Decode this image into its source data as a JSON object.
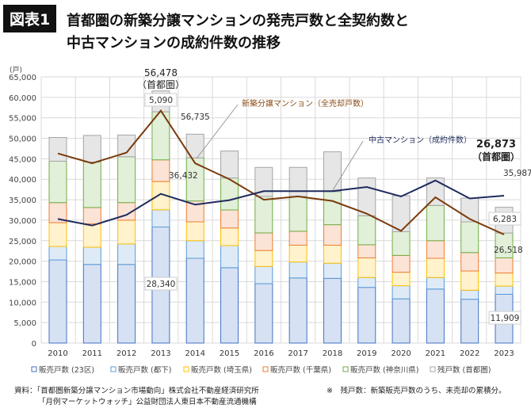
{
  "header": {
    "badge": "図表1",
    "title_line1": "首都圏の新築分譲マンションの発売戸数と全契約数と",
    "title_line2": "中古マンションの成約件数の推移"
  },
  "chart_data": {
    "type": "bar",
    "stacked": true,
    "ylabel": "(戸)",
    "ylim": [
      0,
      65000
    ],
    "yticks": [
      0,
      5000,
      10000,
      15000,
      20000,
      25000,
      30000,
      35000,
      40000,
      45000,
      50000,
      55000,
      60000,
      65000
    ],
    "ytick_labels": [
      "0",
      "5,000",
      "10,000",
      "15,000",
      "20,000",
      "25,000",
      "30,000",
      "35,000",
      "40,000",
      "45,000",
      "50,000",
      "55,000",
      "60,000",
      "65,000"
    ],
    "grid": true,
    "legend_position": "bottom",
    "categories": [
      "2010",
      "2011",
      "2012",
      "2013",
      "2014",
      "2015",
      "2016",
      "2017",
      "2018",
      "2019",
      "2020",
      "2021",
      "2022",
      "2023"
    ],
    "series": [
      {
        "name": "販売戸数 (23区)",
        "fill": "#d6e2f3",
        "stroke": "#4472c4",
        "values": [
          20300,
          19200,
          19200,
          28340,
          20700,
          18400,
          14500,
          15900,
          15800,
          13600,
          10800,
          13200,
          10700,
          11909
        ]
      },
      {
        "name": "販売戸数 (都下)",
        "fill": "#deebf7",
        "stroke": "#5b9bd5",
        "values": [
          3300,
          4200,
          5000,
          4200,
          4300,
          5400,
          4200,
          3900,
          3700,
          2400,
          3200,
          2800,
          2200,
          2000
        ]
      },
      {
        "name": "販売戸数 (埼玉県)",
        "fill": "#fff2cc",
        "stroke": "#ffc000",
        "values": [
          5800,
          5700,
          5800,
          6900,
          4600,
          4300,
          3900,
          4100,
          4400,
          4800,
          3300,
          4700,
          4700,
          3200
        ]
      },
      {
        "name": "販売戸数 (千葉県)",
        "fill": "#fbe3d6",
        "stroke": "#ed7d31",
        "values": [
          4900,
          4000,
          4300,
          5300,
          5100,
          4400,
          4300,
          3400,
          5000,
          3200,
          4100,
          4300,
          4500,
          3700
        ]
      },
      {
        "name": "販売戸数 (神奈川県)",
        "fill": "#e2efd9",
        "stroke": "#70ad47",
        "values": [
          10100,
          11100,
          11200,
          11738,
          10500,
          7800,
          8900,
          8500,
          8100,
          7100,
          5800,
          8600,
          7500,
          6064
        ]
      },
      {
        "name": "残戸数 (首都圏)",
        "fill": "#e6e6e6",
        "stroke": "#a5a5a5",
        "values": [
          5800,
          6500,
          5300,
          5090,
          5800,
          6600,
          7100,
          7100,
          9700,
          9200,
          8800,
          6700,
          5800,
          6283
        ]
      }
    ],
    "lines": [
      {
        "name": "新築分譲マンション（全売却戸数）",
        "color": "#7a3b0c",
        "values": [
          46300,
          43900,
          46500,
          56735,
          43900,
          40000,
          35000,
          35800,
          34700,
          31600,
          27400,
          35600,
          30300,
          26518
        ]
      },
      {
        "name": "中古マンション（成約件数）",
        "color": "#1f2b5c",
        "values": [
          30300,
          28700,
          31300,
          36432,
          33800,
          34900,
          37100,
          37100,
          37100,
          38100,
          35800,
          39700,
          35300,
          35987
        ]
      }
    ],
    "annotations": {
      "total_2013": "56,478",
      "region_2013": "（首都圏）",
      "zan_2013": "5,090",
      "new_2013": "56,735",
      "used_2013": "36,432",
      "ku_2013": "28,340",
      "total_2023": "26,873",
      "region_2023": "（首都圏）",
      "used_2023": "35,987",
      "zan_2023": "6,283",
      "new_2023": "26,518",
      "ku_2023": "11,909"
    }
  },
  "footer": {
    "source_line1": "資料：「首都圏新築分譲マンション市場動向」株式会社不動産経済研究所",
    "source_line2": "「月例マーケットウォッチ」公益財団法人東日本不動産流通機構",
    "note": "※　残戸数：新築販売戸数のうち、未売却の累積分。"
  }
}
